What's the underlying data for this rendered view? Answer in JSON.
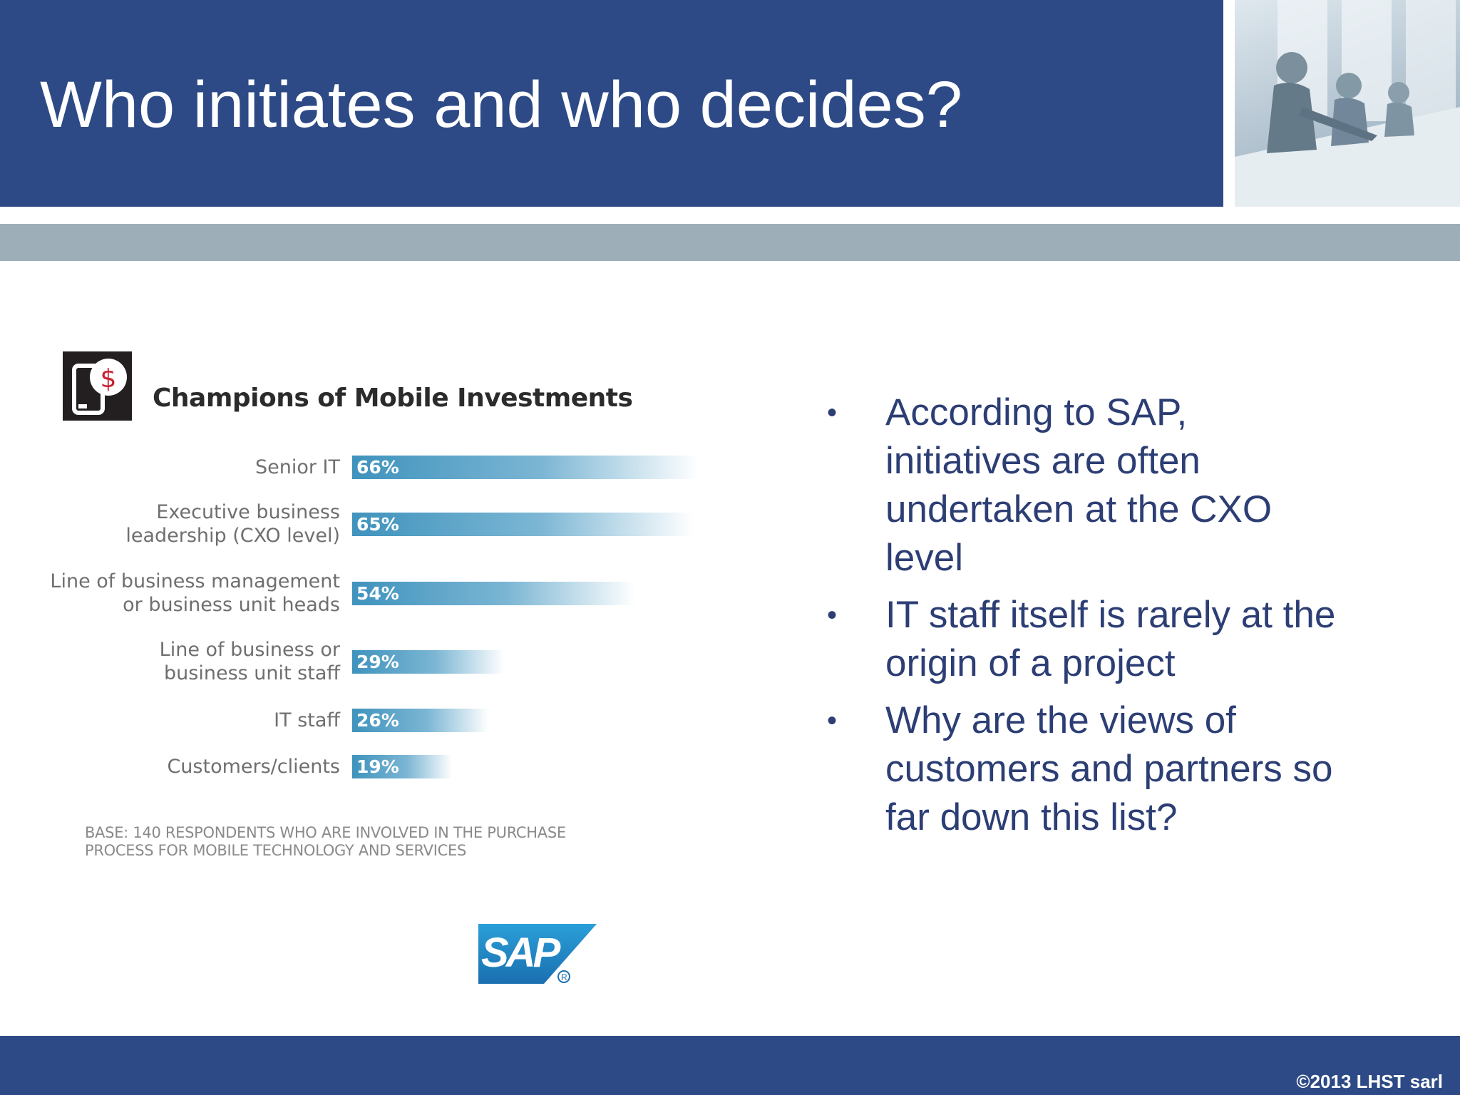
{
  "slide": {
    "title": "Who initiates and who decides?",
    "copyright": "©2013 LHST sarl",
    "colors": {
      "header": "#2d4a86",
      "band": "#9eaeb9",
      "text": "#2c3e74",
      "bar": "#3f93bd"
    }
  },
  "chart_data": {
    "type": "bar",
    "orientation": "horizontal",
    "title": "Champions of Mobile Investments",
    "categories": [
      "Senior IT",
      "Executive business\nleadership (CXO level)",
      "Line of business management\nor business unit heads",
      "Line of business or\nbusiness unit staff",
      "IT staff",
      "Customers/clients"
    ],
    "values": [
      66,
      65,
      54,
      29,
      26,
      19
    ],
    "value_labels": [
      "66%",
      "65%",
      "54%",
      "29%",
      "26%",
      "19%"
    ],
    "unit": "%",
    "grid": false,
    "legend": "none",
    "note": "BASE: 140 respondents who are involved in the purchase process for mobile technology and services"
  },
  "bullets": [
    "According to SAP, initiatives are often undertaken at the CXO level",
    "IT staff itself is rarely at the origin of a project",
    "Why are the views of customers and partners so far down this list?"
  ],
  "icons": {
    "chart_icon": "mobile-money-icon",
    "logo": "sap-logo",
    "logo_text": "SAP",
    "photo": "meeting-photo"
  }
}
